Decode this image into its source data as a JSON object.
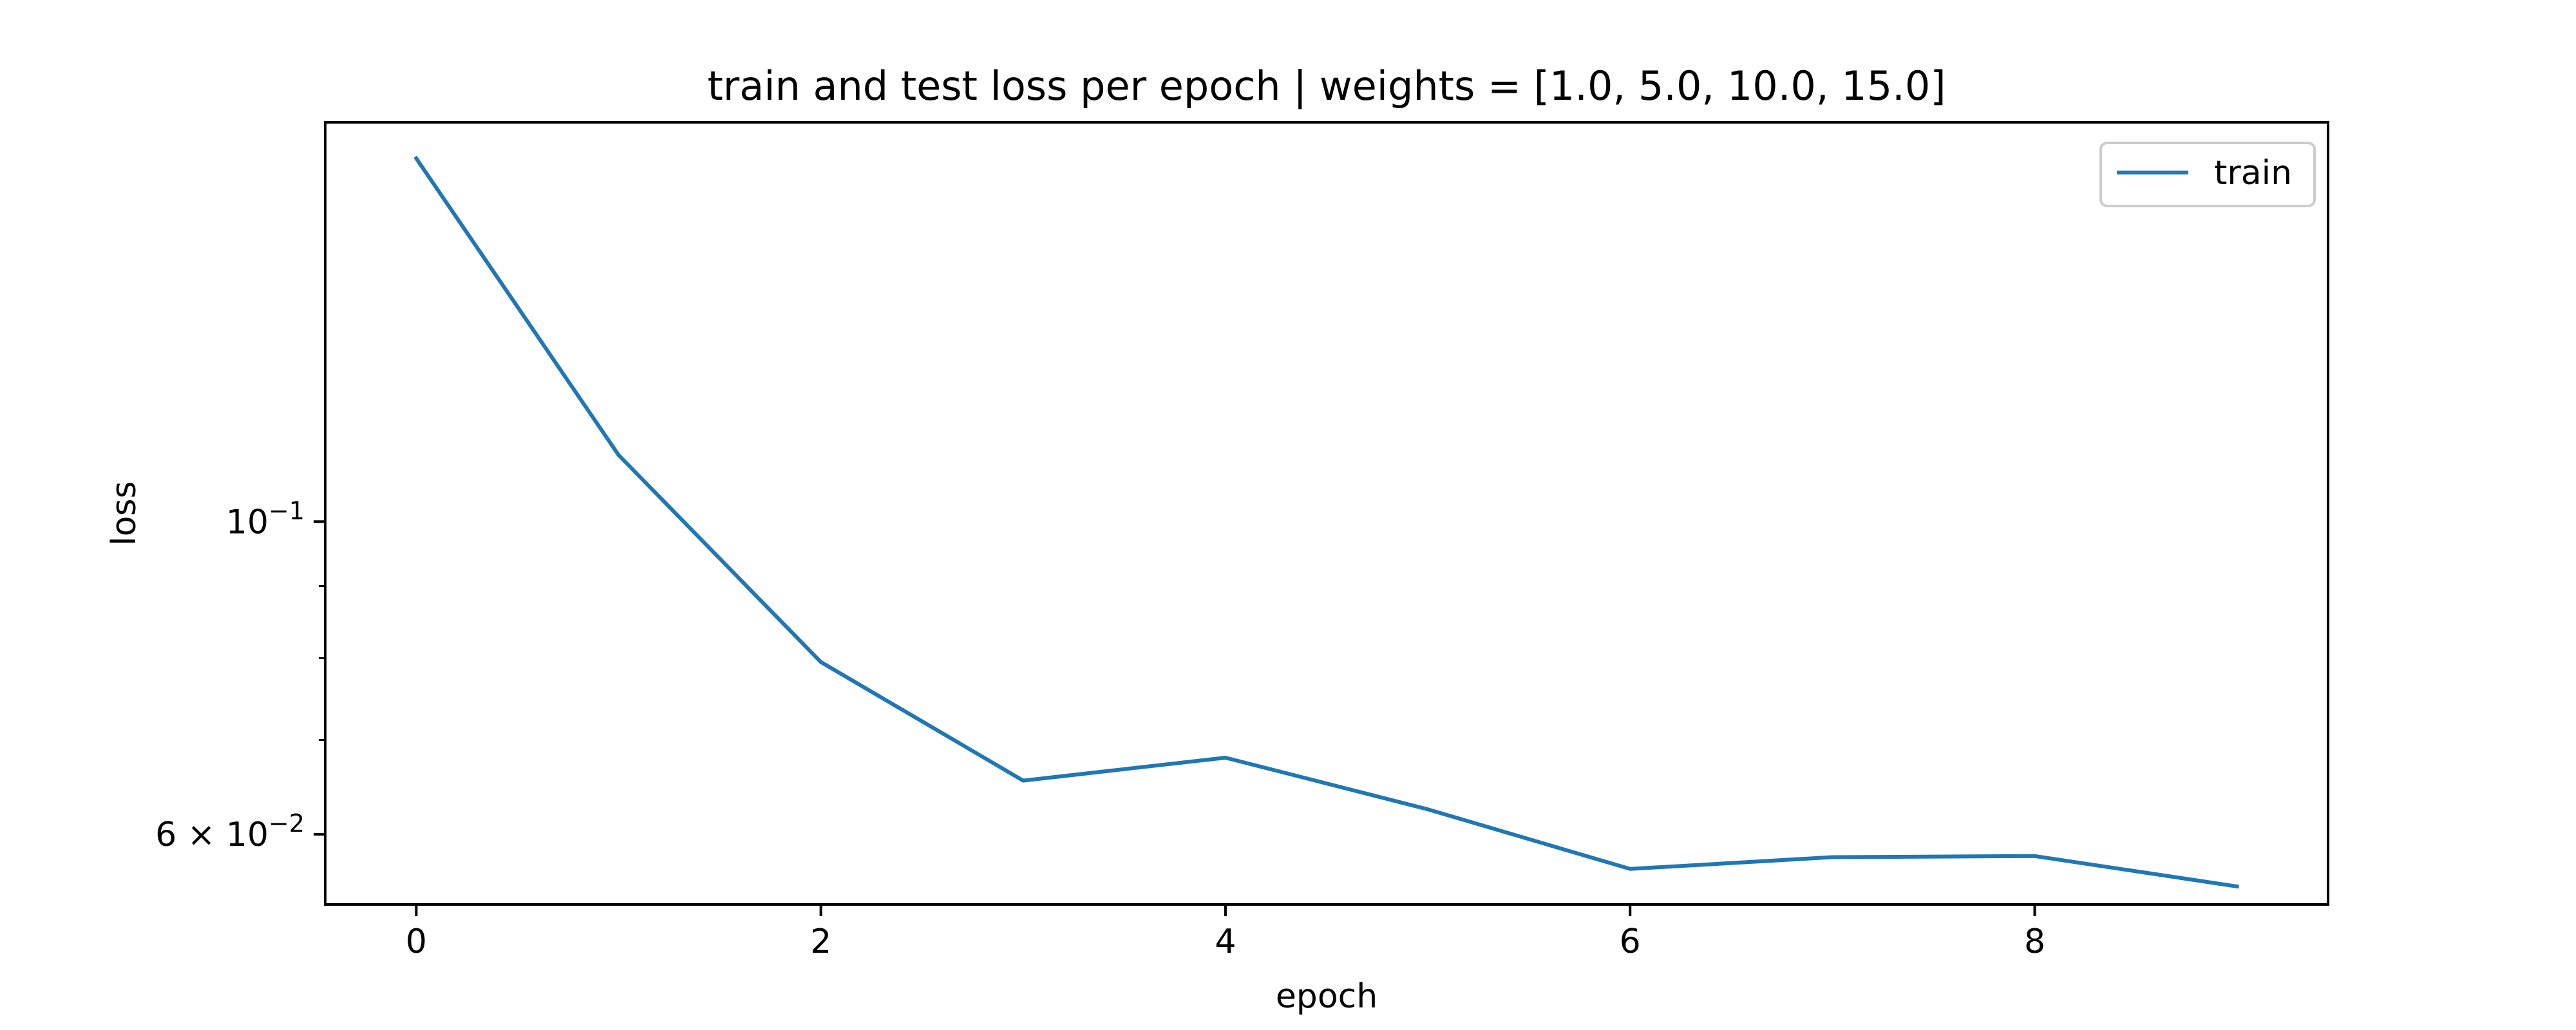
{
  "chart_data": {
    "type": "line",
    "title": "train and test loss per epoch | weights = [1.0, 5.0, 10.0, 15.0]",
    "xlabel": "epoch",
    "ylabel": "loss",
    "x_scale": "linear",
    "y_scale": "log",
    "xlim": [
      -0.45,
      9.45
    ],
    "ylim": [
      0.0535,
      0.192
    ],
    "x_ticks": [
      0,
      2,
      4,
      6,
      8
    ],
    "x_tick_labels": [
      "0",
      "2",
      "4",
      "6",
      "8"
    ],
    "y_major_ticks": [
      0.1,
      0.06
    ],
    "y_major_tick_labels": [
      {
        "base": "10",
        "exp": "−1"
      },
      {
        "mantissa": "6 × ",
        "base": "10",
        "exp": "−2"
      }
    ],
    "y_minor_ticks": [
      0.09,
      0.08,
      0.07
    ],
    "grid": false,
    "legend": {
      "position": "top-right",
      "entries": [
        "train"
      ]
    },
    "series": [
      {
        "name": "train",
        "color": "#1f77b4",
        "x": [
          0,
          1,
          2,
          3,
          4,
          5,
          6,
          7,
          8,
          9
        ],
        "values": [
          0.181,
          0.1115,
          0.0795,
          0.0655,
          0.068,
          0.0625,
          0.0567,
          0.0578,
          0.0579,
          0.0551
        ]
      }
    ]
  }
}
